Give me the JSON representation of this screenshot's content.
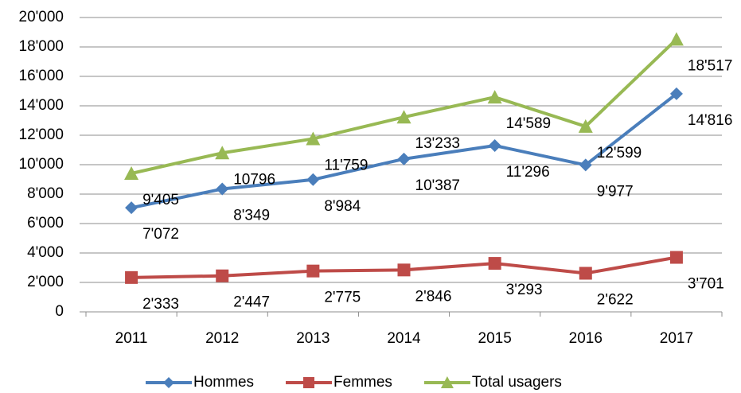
{
  "chart_data": {
    "type": "line",
    "categories": [
      "2011",
      "2012",
      "2013",
      "2014",
      "2015",
      "2016",
      "2017"
    ],
    "series": [
      {
        "name": "Hommes",
        "color": "#4a7ebb",
        "marker": "diamond",
        "values": [
          7072,
          8349,
          8984,
          10387,
          11296,
          9977,
          14816
        ],
        "value_labels": [
          "7'072",
          "8'349",
          "8'984",
          "10'387",
          "11'296",
          "9'977",
          "14'816"
        ]
      },
      {
        "name": "Femmes",
        "color": "#be4b48",
        "marker": "square",
        "values": [
          2333,
          2447,
          2775,
          2846,
          3293,
          2622,
          3701
        ],
        "value_labels": [
          "2'333",
          "2'447",
          "2'775",
          "2'846",
          "3'293",
          "2'622",
          "3'701"
        ]
      },
      {
        "name": "Total usagers",
        "color": "#98b954",
        "marker": "triangle",
        "values": [
          9405,
          10796,
          11759,
          13233,
          14589,
          12599,
          18517
        ],
        "value_labels": [
          "9'405",
          "10796",
          "11'759",
          "13'233",
          "14'589",
          "12'599",
          "18'517"
        ]
      }
    ],
    "ylim": [
      0,
      20000
    ],
    "yticks": [
      0,
      {
        "value": 2000,
        "label": "2'000"
      },
      {
        "value": 4000,
        "label": "4'000"
      },
      {
        "value": 6000,
        "label": "6'000"
      },
      {
        "value": 8000,
        "label": "8'000"
      },
      {
        "value": 10000,
        "label": "10'000"
      },
      {
        "value": 12000,
        "label": "12'000"
      },
      {
        "value": 14000,
        "label": "14'000"
      },
      {
        "value": 16000,
        "label": "16'000"
      },
      {
        "value": 18000,
        "label": "18'000"
      },
      {
        "value": 20000,
        "label": "20'000"
      }
    ],
    "grid": true,
    "legend": "bottom"
  }
}
